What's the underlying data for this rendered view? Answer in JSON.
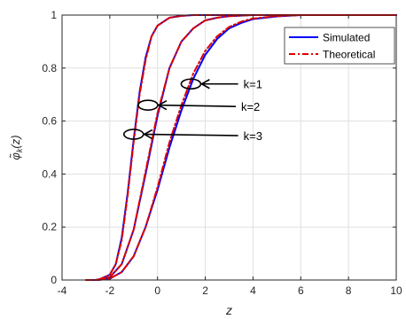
{
  "chart_data": {
    "type": "line",
    "title": "",
    "xlabel": "z",
    "ylabel": "φ̃k(z)",
    "ylabel_main": "φ̃",
    "ylabel_sub": "k",
    "ylabel_rest": "(z)",
    "xlim": [
      -4,
      10
    ],
    "ylim": [
      0,
      1
    ],
    "xticks": [
      -4,
      -2,
      0,
      2,
      4,
      6,
      8,
      10
    ],
    "yticks": [
      0,
      0.2,
      0.4,
      0.6,
      0.8,
      1
    ],
    "xtick_labels": [
      "-4",
      "-2",
      "0",
      "2",
      "4",
      "6",
      "8",
      "10"
    ],
    "ytick_labels": [
      "0",
      "0.2",
      "0.4",
      "0.6",
      "0.8",
      "1"
    ],
    "grid": true,
    "legend_position": "top-right",
    "colors": {
      "simulated": "#0000ff",
      "theoretical": "#dd0000",
      "axis": "#262626",
      "grid": "#e0e0e0"
    },
    "series": [
      {
        "name": "Simulated",
        "style": "solid",
        "curves": [
          {
            "k": 1,
            "x": [
              -3,
              -2.5,
              -2,
              -1.5,
              -1,
              -0.5,
              0,
              0.5,
              1,
              1.5,
              2,
              2.5,
              3,
              3.5,
              4,
              5,
              6,
              7,
              10
            ],
            "y": [
              0,
              0,
              0.005,
              0.03,
              0.09,
              0.2,
              0.34,
              0.5,
              0.64,
              0.76,
              0.85,
              0.91,
              0.95,
              0.97,
              0.985,
              0.995,
              1,
              1,
              1
            ]
          },
          {
            "k": 2,
            "x": [
              -2.6,
              -2,
              -1.5,
              -1,
              -0.5,
              0,
              0.5,
              1,
              1.5,
              2,
              2.5,
              3,
              4,
              5,
              10
            ],
            "y": [
              0,
              0.01,
              0.06,
              0.19,
              0.4,
              0.62,
              0.8,
              0.9,
              0.95,
              0.98,
              0.99,
              0.996,
              1,
              1,
              1
            ]
          },
          {
            "k": 3,
            "x": [
              -2.5,
              -2,
              -1.75,
              -1.5,
              -1.25,
              -1,
              -0.75,
              -0.5,
              -0.25,
              0,
              0.5,
              1,
              1.5,
              2,
              3,
              10
            ],
            "y": [
              0,
              0.02,
              0.06,
              0.16,
              0.33,
              0.53,
              0.71,
              0.84,
              0.92,
              0.96,
              0.99,
              0.997,
              1,
              1,
              1,
              1
            ]
          }
        ]
      },
      {
        "name": "Theoretical",
        "style": "dash-dot",
        "curves": [
          {
            "k": 1,
            "x": [
              -3,
              -2.5,
              -2,
              -1.5,
              -1,
              -0.5,
              0,
              0.5,
              1,
              1.5,
              2,
              2.5,
              3,
              3.5,
              4,
              5,
              6,
              7,
              10
            ],
            "y": [
              0,
              0,
              0.005,
              0.03,
              0.09,
              0.2,
              0.35,
              0.52,
              0.66,
              0.78,
              0.865,
              0.92,
              0.955,
              0.975,
              0.987,
              0.996,
              1,
              1,
              1
            ]
          },
          {
            "k": 2,
            "x": [
              -2.6,
              -2,
              -1.5,
              -1,
              -0.5,
              0,
              0.5,
              1,
              1.5,
              2,
              2.5,
              3,
              4,
              5,
              10
            ],
            "y": [
              0,
              0.01,
              0.06,
              0.19,
              0.41,
              0.63,
              0.8,
              0.9,
              0.95,
              0.98,
              0.99,
              0.996,
              1,
              1,
              1
            ]
          },
          {
            "k": 3,
            "x": [
              -2.5,
              -2,
              -1.75,
              -1.5,
              -1.25,
              -1,
              -0.75,
              -0.5,
              -0.25,
              0,
              0.5,
              1,
              1.5,
              2,
              3,
              10
            ],
            "y": [
              0,
              0.02,
              0.06,
              0.15,
              0.32,
              0.52,
              0.7,
              0.83,
              0.92,
              0.96,
              0.99,
              0.997,
              1,
              1,
              1,
              1
            ]
          }
        ]
      }
    ],
    "annotations": [
      {
        "label": "k=1",
        "x": 1.4,
        "y": 0.74,
        "text_x": 3.6,
        "text_y": 0.74
      },
      {
        "label": "k=2",
        "x": -0.4,
        "y": 0.66,
        "text_x": 3.5,
        "text_y": 0.655
      },
      {
        "label": "k=3",
        "x": -1.0,
        "y": 0.55,
        "text_x": 3.6,
        "text_y": 0.545
      }
    ]
  }
}
